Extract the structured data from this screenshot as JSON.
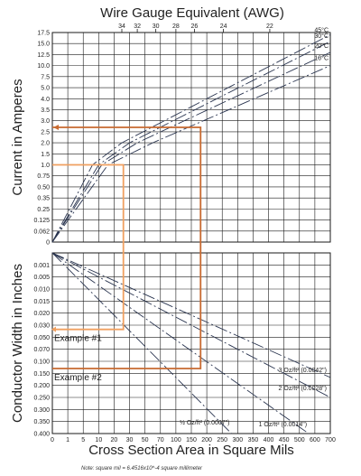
{
  "chart_data": [
    {
      "type": "line",
      "top_title": "Wire Gauge Equivalent (AWG)",
      "ylabel": "Current in Amperes",
      "awg_ticks": [
        {
          "label": "34",
          "x": 25
        },
        {
          "label": "32",
          "x": 40
        },
        {
          "label": "30",
          "x": 64
        },
        {
          "label": "28",
          "x": 100
        },
        {
          "label": "26",
          "x": 160
        },
        {
          "label": "24",
          "x": 254
        },
        {
          "label": "22",
          "x": 404
        }
      ],
      "y_ticks": [
        {
          "label": "17.5",
          "v": 17.5
        },
        {
          "label": "15.0",
          "v": 15.0
        },
        {
          "label": "12.5",
          "v": 12.5
        },
        {
          "label": "10.0",
          "v": 10.0
        },
        {
          "label": "7.5",
          "v": 7.5
        },
        {
          "label": "5.0",
          "v": 5.0
        },
        {
          "label": "4.0",
          "v": 4.0
        },
        {
          "label": "3.5",
          "v": 3.5
        },
        {
          "label": "3.0",
          "v": 3.0
        },
        {
          "label": "2.5",
          "v": 2.5
        },
        {
          "label": "2.0",
          "v": 2.0
        },
        {
          "label": "1.5",
          "v": 1.5
        },
        {
          "label": "1.0",
          "v": 1.0
        },
        {
          "label": "0.75",
          "v": 0.75
        },
        {
          "label": "0.50",
          "v": 0.5
        },
        {
          "label": "0.35",
          "v": 0.35
        },
        {
          "label": "0.25",
          "v": 0.25
        },
        {
          "label": "0.125",
          "v": 0.125
        },
        {
          "label": "0.062",
          "v": 0.062
        },
        {
          "label": "0",
          "v": 0
        }
      ],
      "series": [
        {
          "name": "45°C",
          "points": [
            [
              0,
              0
            ],
            [
              8,
              1.0
            ],
            [
              25,
              2.0
            ],
            [
              700,
              17.0
            ]
          ]
        },
        {
          "name": "30°C",
          "points": [
            [
              0,
              0
            ],
            [
              10,
              1.0
            ],
            [
              30,
              2.0
            ],
            [
              700,
              15.5
            ]
          ]
        },
        {
          "name": "20°C",
          "points": [
            [
              0,
              0
            ],
            [
              12,
              1.0
            ],
            [
              40,
              2.0
            ],
            [
              700,
              13.0
            ]
          ]
        },
        {
          "name": "10°C",
          "points": [
            [
              0,
              0
            ],
            [
              16,
              1.0
            ],
            [
              60,
              2.0
            ],
            [
              700,
              10.0
            ]
          ]
        }
      ]
    },
    {
      "type": "line",
      "xlabel": "Cross Section Area in Square Mils",
      "ylabel": "Conductor Width in Inches",
      "x_ticks": [
        "0",
        "1",
        "5",
        "10",
        "20",
        "30",
        "50",
        "70",
        "100",
        "150",
        "200",
        "250",
        "300",
        "350",
        "400",
        "450",
        "500",
        "600",
        "700"
      ],
      "y_ticks": [
        "0.001",
        "0.005",
        "0.010",
        "0.015",
        "0.020",
        "0.030",
        "0.050",
        "0.070",
        "0.100",
        "0.150",
        "0.200",
        "0.250",
        "0.300",
        "0.350",
        "0.400"
      ],
      "series": [
        {
          "name": "3 Oz/ft² (0.0042\")",
          "points": [
            [
              0,
              0
            ],
            [
              700,
              0.167
            ]
          ]
        },
        {
          "name": "2 Oz/ft² (0.0028\")",
          "points": [
            [
              0,
              0
            ],
            [
              700,
              0.25
            ]
          ]
        },
        {
          "name": "1 Oz/ft² (0.0014\")",
          "points": [
            [
              0,
              0
            ],
            [
              560,
              0.4
            ]
          ]
        },
        {
          "name": "½ Oz/ft² (0.0007\")",
          "points": [
            [
              0,
              0
            ],
            [
              280,
              0.4
            ]
          ]
        }
      ]
    }
  ],
  "examples": [
    {
      "label": "Example #1",
      "current": 1.0,
      "area": 26,
      "width": 0.037
    },
    {
      "label": "Example #2",
      "current": 2.7,
      "area": 180,
      "width": 0.13
    }
  ],
  "note": "Note: square mil = 6.4516x10^-4 square millimeter",
  "colors": {
    "grid": "#1a1a1a",
    "curve": "#2a3550",
    "example1": "#f0a060",
    "example2": "#c86a30"
  }
}
